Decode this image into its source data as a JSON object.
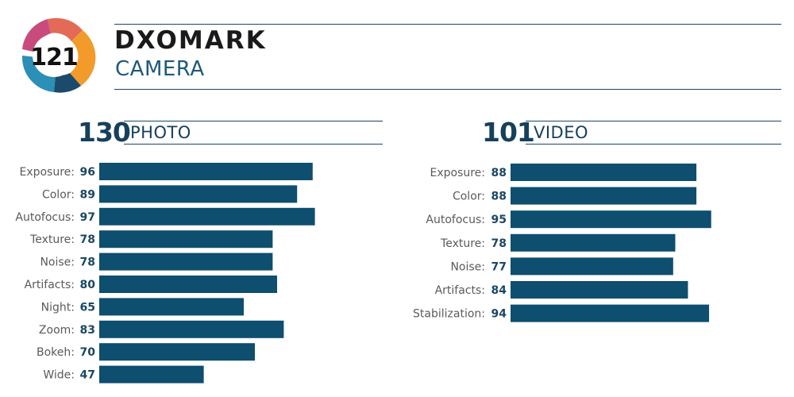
{
  "brand": {
    "name": "DXOMARK",
    "product": "CAMERA",
    "overall_score": "121",
    "badge_colors": [
      "#c94b7e",
      "#e26a56",
      "#f29b2b",
      "#2b8fb6",
      "#1c4a6b"
    ]
  },
  "colors": {
    "bar": "#0e4e6f",
    "text_dark": "#16405c",
    "label_gray": "#5a5a5a"
  },
  "chart_data": [
    {
      "type": "bar",
      "orientation": "horizontal",
      "score": "130",
      "title": "PHOTO",
      "categories": [
        "Exposure:",
        "Color:",
        "Autofocus:",
        "Texture:",
        "Noise:",
        "Artifacts:",
        "Night:",
        "Zoom:",
        "Bokeh:",
        "Wide:"
      ],
      "values": [
        96,
        89,
        97,
        78,
        78,
        80,
        65,
        83,
        70,
        47
      ]
    },
    {
      "type": "bar",
      "orientation": "horizontal",
      "score": "101",
      "title": "VIDEO",
      "categories": [
        "Exposure:",
        "Color:",
        "Autofocus:",
        "Texture:",
        "Noise:",
        "Artifacts:",
        "Stabilization:"
      ],
      "values": [
        88,
        88,
        95,
        78,
        77,
        84,
        94
      ]
    }
  ]
}
